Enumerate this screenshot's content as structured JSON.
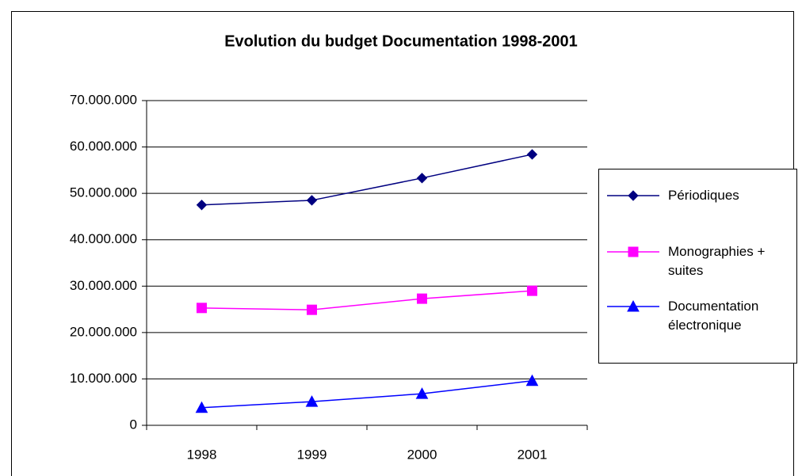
{
  "chart_data": {
    "type": "line",
    "title": "Evolution du budget Documentation 1998-2001",
    "categories": [
      "1998",
      "1999",
      "2000",
      "2001"
    ],
    "series": [
      {
        "name": "Périodiques",
        "color": "#000080",
        "marker": "diamond",
        "values": [
          47500000,
          48500000,
          53300000,
          58400000
        ]
      },
      {
        "name": "Monographies + suites",
        "color": "#ff00ff",
        "marker": "square",
        "values": [
          25300000,
          24900000,
          27300000,
          29000000
        ]
      },
      {
        "name": "Documentation électronique",
        "color": "#0000ff",
        "marker": "triangle",
        "values": [
          3800000,
          5100000,
          6800000,
          9600000
        ]
      }
    ],
    "ylim": [
      0,
      70000000
    ],
    "yticks": [
      0,
      {
        "value": 10000000,
        "label": "10.000.000"
      },
      {
        "value": 20000000,
        "label": "20.000.000"
      },
      {
        "value": 30000000,
        "label": "30.000.000"
      },
      {
        "value": 40000000,
        "label": "40.000.000"
      },
      {
        "value": 50000000,
        "label": "50.000.000"
      },
      {
        "value": 60000000,
        "label": "60.000.000"
      },
      {
        "value": 70000000,
        "label": "70.000.000"
      }
    ],
    "grid": true,
    "legend": "right"
  }
}
